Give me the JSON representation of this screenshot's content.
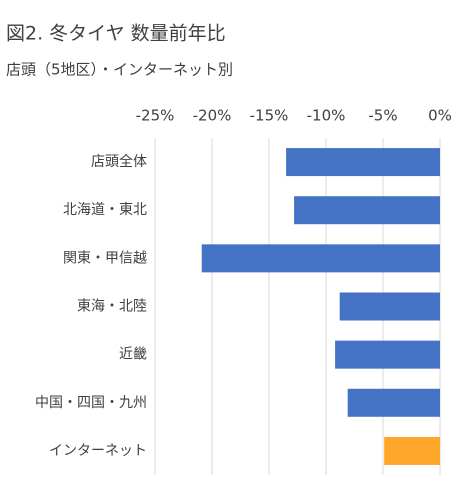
{
  "chart_data": {
    "type": "barh",
    "title": "図2. 冬タイヤ 数量前年比",
    "subtitle": "店頭（5地区）・インターネット別",
    "categories": [
      "店頭全体",
      "北海道・東北",
      "関東・甲信越",
      "東海・北陸",
      "近畿",
      "中国・四国・九州",
      "インターネット"
    ],
    "values": [
      -13.5,
      -12.8,
      -20.9,
      -8.8,
      -9.2,
      -8.1,
      -4.9
    ],
    "colors": [
      "#4472c4",
      "#4472c4",
      "#4472c4",
      "#4472c4",
      "#4472c4",
      "#4472c4",
      "#ffa72a"
    ],
    "xlim": [
      -25,
      0
    ],
    "xticks": [
      {
        "value": -25,
        "label": "-25%"
      },
      {
        "value": -20,
        "label": "-20%"
      },
      {
        "value": -15,
        "label": "-15%"
      },
      {
        "value": -10,
        "label": "-10%"
      },
      {
        "value": -5,
        "label": "-5%"
      },
      {
        "value": 0,
        "label": "0%"
      }
    ],
    "grid": true
  }
}
